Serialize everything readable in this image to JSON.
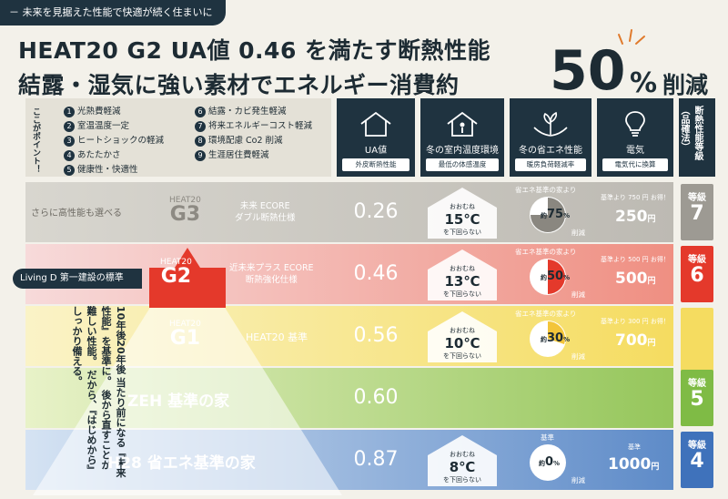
{
  "header": {
    "tag": "－ 未来を見据えた性能で快適が続く住まいに",
    "title1": "HEAT20 G2 UA値 0.46 を満たす断熱性能",
    "title2": "結露・湿気に強い素材でエネルギー消費約",
    "big": "50",
    "pct": "%",
    "sakugen": "削減"
  },
  "points": {
    "label": "ここがポイント！",
    "items": [
      {
        "n": "1",
        "t": "光熱費軽減"
      },
      {
        "n": "2",
        "t": "室温温度一定"
      },
      {
        "n": "3",
        "t": "ヒートショックの軽減"
      },
      {
        "n": "4",
        "t": "あたたかさ"
      },
      {
        "n": "5",
        "t": "健康性・快適性"
      },
      {
        "n": "6",
        "t": "結露・カビ発生軽減"
      },
      {
        "n": "7",
        "t": "将来エネルギーコスト軽減"
      },
      {
        "n": "8",
        "t": "環境配慮 Co2 削減"
      },
      {
        "n": "9",
        "t": "生涯居住費軽減"
      }
    ]
  },
  "columns": [
    {
      "label": "UA値",
      "sub": "外皮断熱性能",
      "icon": "house-icon"
    },
    {
      "label": "冬の室内温度環境",
      "sub": "最低の体感温度",
      "icon": "person-house-icon"
    },
    {
      "label": "冬の省エネ性能",
      "sub": "暖房負荷軽減率",
      "icon": "hands-plant-icon"
    },
    {
      "label": "電気",
      "sub": "電気代に換算",
      "icon": "lightbulb-icon"
    }
  ],
  "grade_head": "断熱性能等級（品確法）",
  "living": "Living D 第一建設の標準",
  "note": "10年後20年後 当たり前になる『未来性能』を基準に。 後から直すことが難しい性能。 だから、『はじめから』しっかり備える。",
  "rows": [
    {
      "pre": "さらに高性能も選べる",
      "heat_s": "HEAT20",
      "heat_b": "G3",
      "spec": "未来 ECORE\nダブル断熱仕様",
      "ua": "0.26",
      "temp_s": "おおむね",
      "temp": "15℃",
      "temp_n": "を下回らない",
      "red_note": "省エネ基準の家より",
      "red": "75",
      "red_unit": "%",
      "red_suffix": "削減",
      "price_note": "基準より 750 円 お得！",
      "yen": "250",
      "yen_unit": "円",
      "grade_s": "等級",
      "grade": "7"
    },
    {
      "heat_s": "HEAT20",
      "heat_b": "G2",
      "spec": "近未来プラス ECORE\n断熱強化仕様",
      "ua": "0.46",
      "temp_s": "おおむね",
      "temp": "13℃",
      "temp_n": "を下回らない",
      "red_note": "省エネ基準の家より",
      "red": "50",
      "red_unit": "%",
      "red_suffix": "削減",
      "price_note": "基準より 500 円 お得！",
      "yen": "500",
      "yen_unit": "円",
      "grade_s": "等級",
      "grade": "6"
    },
    {
      "heat_s": "HEAT20",
      "heat_b": "G1",
      "spec": "HEAT20 基準",
      "ua": "0.56",
      "temp_s": "おおむね",
      "temp": "10℃",
      "temp_n": "を下回らない",
      "red_note": "省エネ基準の家より",
      "red": "30",
      "red_unit": "%",
      "red_suffix": "削減",
      "price_note": "基準より 300 円 お得！",
      "yen": "700",
      "yen_unit": "円"
    },
    {
      "label": "ZEH 基準の家",
      "ua": "0.60",
      "grade_s": "等級",
      "grade": "5"
    },
    {
      "label": "H28 省エネ基準の家",
      "ua": "0.87",
      "temp_s": "おおむね",
      "temp": "8℃",
      "temp_n": "を下回らない",
      "red_note": "基準",
      "red": "0",
      "red_unit": "%",
      "red_suffix": "削減",
      "price_note": "基準",
      "yen": "1000",
      "yen_unit": "円",
      "grade_s": "等級",
      "grade": "4"
    }
  ],
  "prefix": {
    "yaku": "約"
  }
}
